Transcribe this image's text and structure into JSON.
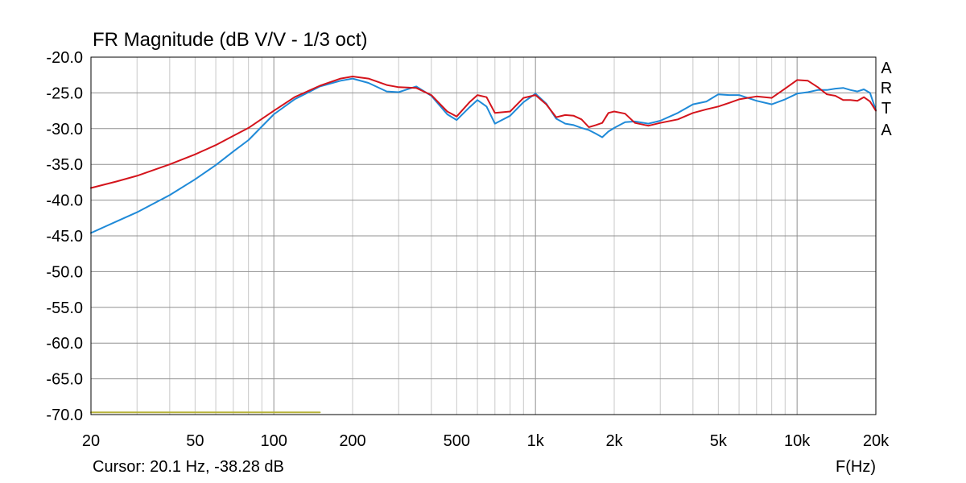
{
  "chart_data": {
    "type": "line",
    "title": "FR Magnitude (dB V/V - 1/3 oct)",
    "xlabel": "F(Hz)",
    "ylabel": "",
    "xscale": "log",
    "xlim": [
      20,
      20000
    ],
    "ylim": [
      -70,
      -20
    ],
    "grid": true,
    "brand": [
      "A",
      "R",
      "T",
      "A"
    ],
    "cursor_text": "Cursor: 20.1 Hz, -38.28 dB",
    "yticks": [
      -20,
      -25,
      -30,
      -35,
      -40,
      -45,
      -50,
      -55,
      -60,
      -65,
      -70
    ],
    "ytick_labels": [
      "-20.0",
      "-25.0",
      "-30.0",
      "-35.0",
      "-40.0",
      "-45.0",
      "-50.0",
      "-55.0",
      "-60.0",
      "-65.0",
      "-70.0"
    ],
    "xticks": [
      20,
      50,
      100,
      200,
      500,
      1000,
      2000,
      5000,
      10000,
      20000
    ],
    "xtick_labels": [
      "20",
      "50",
      "100",
      "200",
      "500",
      "1k",
      "2k",
      "5k",
      "10k",
      "20k"
    ],
    "series": [
      {
        "color": "#d4141c",
        "x": [
          20,
          25,
          30,
          40,
          50,
          60,
          70,
          80,
          100,
          120,
          150,
          180,
          200,
          230,
          270,
          300,
          350,
          400,
          460,
          500,
          560,
          600,
          650,
          700,
          800,
          900,
          1000,
          1100,
          1200,
          1300,
          1400,
          1500,
          1600,
          1700,
          1800,
          1900,
          2000,
          2200,
          2400,
          2700,
          3000,
          3500,
          4000,
          4500,
          5000,
          5500,
          6000,
          7000,
          8000,
          9000,
          10000,
          11000,
          12000,
          13000,
          14000,
          15000,
          16000,
          17000,
          18000,
          19000,
          20000
        ],
        "y": [
          -38.3,
          -37.4,
          -36.6,
          -35.0,
          -33.6,
          -32.3,
          -31.0,
          -29.9,
          -27.5,
          -25.6,
          -24.0,
          -23.0,
          -22.7,
          -23.0,
          -23.9,
          -24.2,
          -24.3,
          -25.3,
          -27.6,
          -28.3,
          -26.3,
          -25.3,
          -25.6,
          -27.8,
          -27.6,
          -25.7,
          -25.3,
          -26.6,
          -28.4,
          -28.1,
          -28.2,
          -28.7,
          -29.8,
          -29.5,
          -29.2,
          -27.8,
          -27.6,
          -27.9,
          -29.2,
          -29.6,
          -29.2,
          -28.7,
          -27.8,
          -27.3,
          -26.9,
          -26.4,
          -25.9,
          -25.5,
          -25.7,
          -24.4,
          -23.2,
          -23.3,
          -24.2,
          -25.2,
          -25.4,
          -26.0,
          -26.0,
          -26.1,
          -25.6,
          -26.2,
          -27.5
        ]
      },
      {
        "color": "#1f8ad8",
        "x": [
          20,
          25,
          30,
          40,
          50,
          60,
          70,
          80,
          100,
          120,
          150,
          180,
          200,
          230,
          270,
          300,
          350,
          400,
          460,
          500,
          560,
          600,
          650,
          700,
          800,
          900,
          1000,
          1100,
          1200,
          1300,
          1400,
          1500,
          1600,
          1700,
          1800,
          1900,
          2000,
          2200,
          2400,
          2700,
          3000,
          3500,
          4000,
          4500,
          5000,
          5500,
          6000,
          7000,
          8000,
          9000,
          10000,
          11000,
          12000,
          13000,
          14000,
          15000,
          16000,
          17000,
          18000,
          19000,
          20000
        ],
        "y": [
          -44.6,
          -43.0,
          -41.7,
          -39.3,
          -37.1,
          -35.1,
          -33.2,
          -31.6,
          -28.0,
          -25.9,
          -24.1,
          -23.3,
          -23.0,
          -23.6,
          -24.8,
          -24.9,
          -24.1,
          -25.4,
          -28.0,
          -28.8,
          -27.0,
          -26.0,
          -26.9,
          -29.3,
          -28.2,
          -26.3,
          -25.1,
          -26.5,
          -28.6,
          -29.3,
          -29.5,
          -29.9,
          -30.2,
          -30.7,
          -31.2,
          -30.4,
          -29.9,
          -29.1,
          -29.0,
          -29.3,
          -28.9,
          -27.8,
          -26.6,
          -26.2,
          -25.2,
          -25.3,
          -25.3,
          -26.1,
          -26.6,
          -25.9,
          -25.1,
          -24.9,
          -24.6,
          -24.6,
          -24.4,
          -24.3,
          -24.6,
          -24.8,
          -24.5,
          -25.0,
          -27.4
        ]
      },
      {
        "color": "#b8b43a",
        "x": [
          20,
          150
        ],
        "y": [
          -69.7,
          -69.7
        ]
      }
    ]
  }
}
